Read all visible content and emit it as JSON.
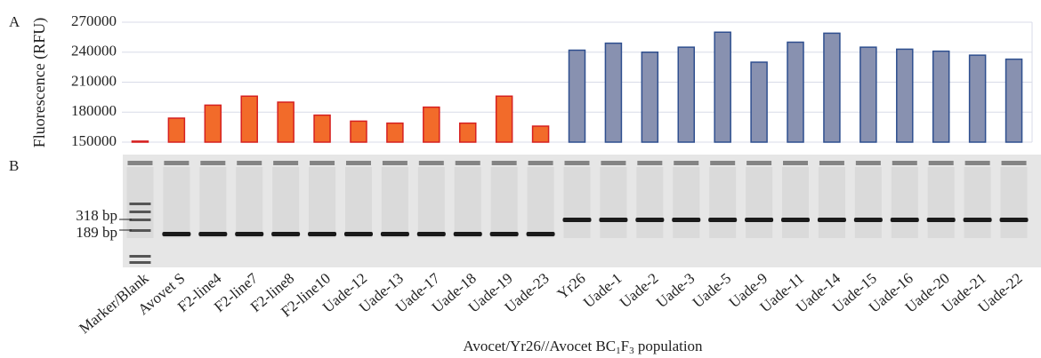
{
  "chart_data": {
    "type": "bar",
    "panel_labels": [
      "A",
      "B"
    ],
    "ylabel": "Fluorescence (RFU)",
    "categories": [
      "Marker/Blank",
      "Avovet S",
      "F2-line4",
      "F2-line7",
      "F2-line8",
      "F2-line10",
      "Uade-12",
      "Uade-13",
      "Uade-17",
      "Uade-18",
      "Uade-19",
      "Uade-23",
      "Yr26",
      "Uade-1",
      "Uade-2",
      "Uade-3",
      "Uade-5",
      "Uade-9",
      "Uade-11",
      "Uade-14",
      "Uade-15",
      "Uade-16",
      "Uade-20",
      "Uade-21",
      "Uade-22"
    ],
    "values": [
      151000,
      174000,
      187000,
      196000,
      190000,
      177000,
      171000,
      169000,
      185000,
      169000,
      196000,
      166000,
      242000,
      249000,
      240000,
      245000,
      260000,
      230000,
      250000,
      259000,
      245000,
      243000,
      241000,
      237000,
      233000
    ],
    "colors": [
      "#f26b2a",
      "#f26b2a",
      "#f26b2a",
      "#f26b2a",
      "#f26b2a",
      "#f26b2a",
      "#f26b2a",
      "#f26b2a",
      "#f26b2a",
      "#f26b2a",
      "#f26b2a",
      "#f26b2a",
      "#8891b0",
      "#8891b0",
      "#8891b0",
      "#8891b0",
      "#8891b0",
      "#8891b0",
      "#8891b0",
      "#8891b0",
      "#8891b0",
      "#8891b0",
      "#8891b0",
      "#8891b0",
      "#8891b0"
    ],
    "edgecolors": [
      "#d62020",
      "#d62020",
      "#d62020",
      "#d62020",
      "#d62020",
      "#d62020",
      "#d62020",
      "#d62020",
      "#d62020",
      "#d62020",
      "#d62020",
      "#d62020",
      "#2f4f8f",
      "#2f4f8f",
      "#2f4f8f",
      "#2f4f8f",
      "#2f4f8f",
      "#2f4f8f",
      "#2f4f8f",
      "#2f4f8f",
      "#2f4f8f",
      "#2f4f8f",
      "#2f4f8f",
      "#2f4f8f",
      "#2f4f8f"
    ],
    "ylim": [
      150000,
      270000
    ],
    "yticks": [
      150000,
      180000,
      210000,
      240000,
      270000
    ],
    "grid": true,
    "gel_markers": [
      "318 bp",
      "189 bp"
    ],
    "xlabel_parts": [
      "Avocet/Yr26//Avocet BC",
      "1",
      "F",
      "3",
      " population"
    ]
  }
}
